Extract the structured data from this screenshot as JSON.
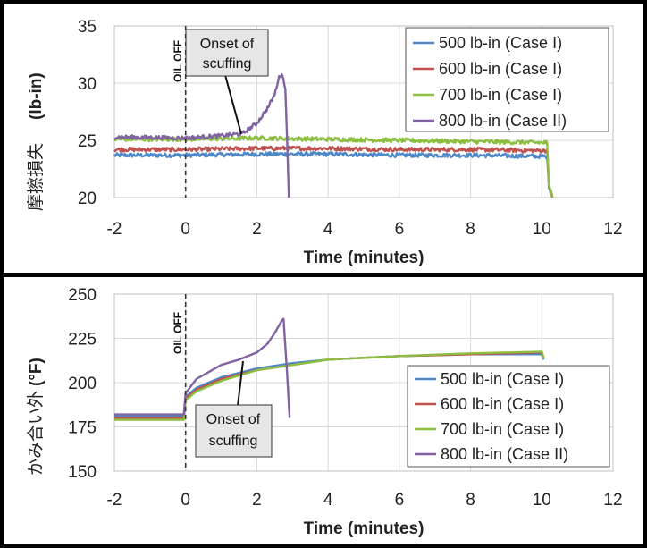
{
  "colors": {
    "frame": "#000000",
    "panel_bg": "#ffffff",
    "grid": "#d9d9d9",
    "series": [
      "#4e88c7",
      "#c0504d",
      "#8cbf3f",
      "#8064a2"
    ]
  },
  "chart_data": [
    {
      "type": "line",
      "panel": "top",
      "xlabel": "Time (minutes)",
      "ylabel_jp": "摩擦損失",
      "ylabel_unit": "(lb-in)",
      "xlim": [
        -2,
        12
      ],
      "ylim": [
        20,
        35
      ],
      "xticks": [
        "-2",
        "0",
        "2",
        "4",
        "6",
        "8",
        "10",
        "12"
      ],
      "yticks": [
        "20",
        "25",
        "30",
        "35"
      ],
      "grid": true,
      "legend_position": "top-right",
      "annotation": "Onset of scuffing",
      "annotation_lines": [
        "Onset of",
        "scuffing"
      ],
      "marker_label": "OIL OFF",
      "series": [
        {
          "name": "500 lb-in (Case I)",
          "x": [
            -2,
            0,
            2,
            4,
            6,
            8,
            10,
            10.15,
            10.2,
            10.3
          ],
          "y": [
            23.7,
            23.7,
            23.8,
            23.8,
            23.7,
            23.7,
            23.6,
            23.6,
            21.0,
            20.0
          ]
        },
        {
          "name": "600 lb-in (Case I)",
          "x": [
            -2,
            0,
            2,
            4,
            6,
            8,
            10,
            10.15,
            10.2,
            10.3
          ],
          "y": [
            24.2,
            24.2,
            24.3,
            24.3,
            24.2,
            24.2,
            24.1,
            24.1,
            21.0,
            20.0
          ]
        },
        {
          "name": "700 lb-in (Case I)",
          "x": [
            -2,
            0,
            2,
            4,
            6,
            8,
            10,
            10.15,
            10.2,
            10.3
          ],
          "y": [
            25.1,
            25.1,
            25.2,
            25.1,
            25.0,
            24.9,
            24.8,
            24.8,
            21.0,
            20.0
          ]
        },
        {
          "name": "800 lb-in (Case II)",
          "x": [
            -2,
            0,
            1,
            1.6,
            2.0,
            2.3,
            2.5,
            2.6,
            2.7,
            2.8,
            2.85,
            2.9
          ],
          "y": [
            25.3,
            25.2,
            25.4,
            25.6,
            26.5,
            27.8,
            29.0,
            30.3,
            30.9,
            29.5,
            25.0,
            20.0
          ]
        }
      ]
    },
    {
      "type": "line",
      "panel": "bottom",
      "xlabel": "Time (minutes)",
      "ylabel_jp": "かみ合い外",
      "ylabel_unit": "(°F)",
      "xlim": [
        -2,
        12
      ],
      "ylim": [
        150,
        250
      ],
      "xticks": [
        "-2",
        "0",
        "2",
        "4",
        "6",
        "8",
        "10",
        "12"
      ],
      "yticks": [
        "150",
        "175",
        "200",
        "225",
        "250"
      ],
      "grid": true,
      "legend_position": "bottom-right",
      "annotation": "Onset of scuffing",
      "annotation_lines": [
        "Onset of",
        "scuffing"
      ],
      "marker_label": "OIL OFF",
      "series": [
        {
          "name": "500 lb-in (Case I)",
          "x": [
            -2,
            -0.05,
            0,
            0.3,
            1,
            2,
            3,
            4,
            6,
            8,
            10,
            10.05
          ],
          "y": [
            181,
            181,
            192,
            197,
            203,
            208,
            211,
            213,
            215,
            216,
            216,
            213
          ]
        },
        {
          "name": "600 lb-in (Case I)",
          "x": [
            -2,
            -0.05,
            0,
            0.3,
            1,
            2,
            3,
            4,
            6,
            8,
            10,
            10.05
          ],
          "y": [
            180,
            180,
            191,
            196,
            202,
            207,
            210,
            213,
            215,
            216,
            217,
            214
          ]
        },
        {
          "name": "700 lb-in (Case I)",
          "x": [
            -2,
            -0.05,
            0,
            0.3,
            1,
            2,
            3,
            4,
            6,
            8,
            10,
            10.05
          ],
          "y": [
            179,
            179,
            190,
            195,
            201,
            207,
            210,
            213,
            215,
            216.5,
            217.5,
            214
          ]
        },
        {
          "name": "800 lb-in (Case II)",
          "x": [
            -2,
            -0.05,
            0,
            0.3,
            1,
            1.5,
            2,
            2.3,
            2.5,
            2.7,
            2.75,
            2.85,
            2.92
          ],
          "y": [
            182,
            182,
            194,
            202,
            210,
            213,
            217,
            222,
            228,
            235,
            236,
            205,
            180
          ]
        }
      ]
    }
  ]
}
